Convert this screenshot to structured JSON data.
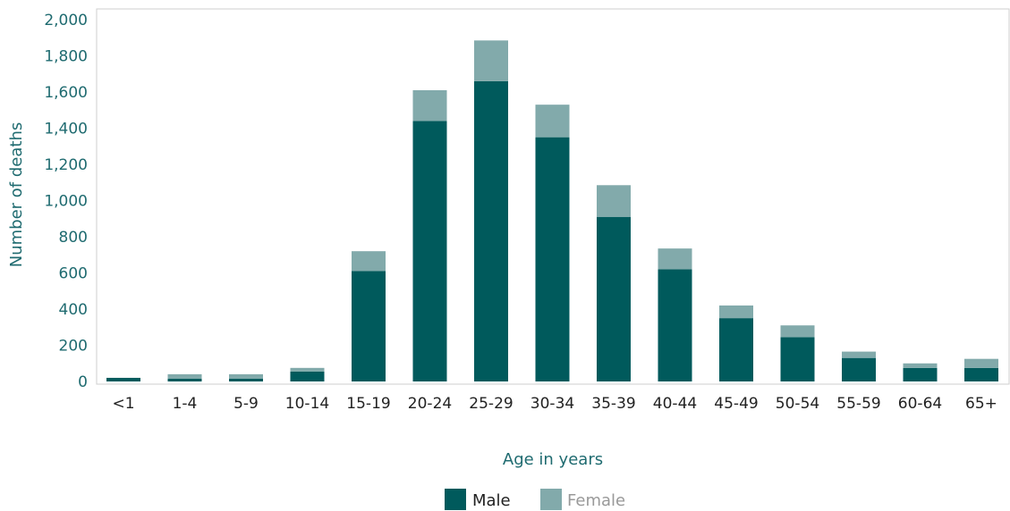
{
  "chart_data": {
    "type": "bar",
    "stacked": true,
    "categories": [
      "<1",
      "1-4",
      "5-9",
      "10-14",
      "15-19",
      "20-24",
      "25-29",
      "30-34",
      "35-39",
      "40-44",
      "45-49",
      "50-54",
      "55-59",
      "60-64",
      "65+"
    ],
    "series": [
      {
        "name": "Male",
        "color": "#005a5c",
        "values": [
          20,
          15,
          15,
          55,
          610,
          1440,
          1660,
          1350,
          910,
          620,
          350,
          245,
          130,
          75,
          75
        ]
      },
      {
        "name": "Female",
        "color": "#82aaab",
        "values": [
          0,
          25,
          25,
          20,
          110,
          170,
          225,
          180,
          175,
          115,
          70,
          65,
          35,
          25,
          50
        ]
      }
    ],
    "xlabel": "Age in years",
    "ylabel": "Number of deaths",
    "ylim": [
      0,
      2000
    ],
    "yticks": [
      0,
      200,
      400,
      600,
      800,
      1000,
      1200,
      1400,
      1600,
      1800,
      2000
    ],
    "ytick_labels": [
      "0",
      "200",
      "400",
      "600",
      "800",
      "1,000",
      "1,200",
      "1,400",
      "1,600",
      "1,800",
      "2,000"
    ],
    "grid": false,
    "legend_position": "bottom-center"
  }
}
